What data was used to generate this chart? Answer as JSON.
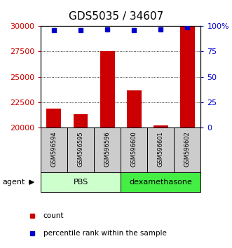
{
  "title": "GDS5035 / 34607",
  "samples": [
    "GSM596594",
    "GSM596595",
    "GSM596596",
    "GSM596600",
    "GSM596601",
    "GSM596602"
  ],
  "counts": [
    21900,
    21300,
    27500,
    23700,
    20200,
    30000
  ],
  "percentile_ranks": [
    96,
    96,
    97,
    96,
    97,
    99
  ],
  "ylim_left": [
    20000,
    30000
  ],
  "ylim_right": [
    0,
    100
  ],
  "yticks_left": [
    20000,
    22500,
    25000,
    27500,
    30000
  ],
  "yticks_right": [
    0,
    25,
    50,
    75,
    100
  ],
  "yticklabels_right": [
    "0",
    "25",
    "50",
    "75",
    "100%"
  ],
  "groups": [
    {
      "label": "PBS",
      "indices": [
        0,
        1,
        2
      ],
      "color": "#ccffcc"
    },
    {
      "label": "dexamethasone",
      "indices": [
        3,
        4,
        5
      ],
      "color": "#44ee44"
    }
  ],
  "bar_color": "#cc0000",
  "dot_color": "#0000cc",
  "bar_width": 0.55,
  "left_tick_color": "#cc0000",
  "right_tick_color": "#0000cc",
  "agent_label": "agent",
  "legend_count_label": "count",
  "legend_pct_label": "percentile rank within the sample",
  "sample_box_color": "#cccccc",
  "title_fontsize": 11,
  "tick_fontsize": 8,
  "sample_fontsize": 6,
  "group_fontsize": 8,
  "legend_fontsize": 7.5,
  "agent_fontsize": 8
}
